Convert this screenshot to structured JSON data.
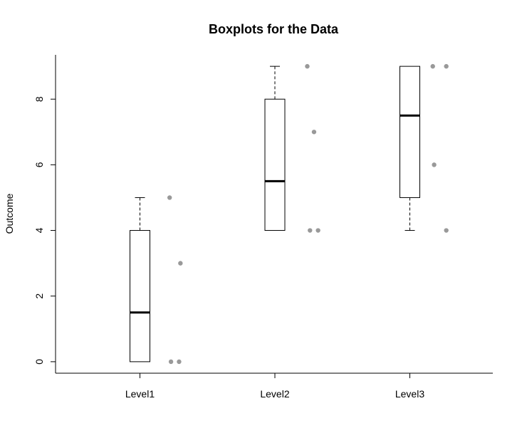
{
  "chart_data": {
    "type": "boxplot",
    "title": "Boxplots for the Data",
    "xlabel": "",
    "ylabel": "Outcome",
    "ylim": [
      -0.35,
      9.35
    ],
    "yticks": [
      0,
      2,
      4,
      6,
      8
    ],
    "categories": [
      "Level1",
      "Level2",
      "Level3"
    ],
    "boxes": [
      {
        "category": "Level1",
        "whisker_low": 0,
        "q1": 0,
        "median": 1.5,
        "q3": 4,
        "whisker_high": 5
      },
      {
        "category": "Level2",
        "whisker_low": 4,
        "q1": 4,
        "median": 5.5,
        "q3": 8,
        "whisker_high": 9
      },
      {
        "category": "Level3",
        "whisker_low": 4,
        "q1": 5,
        "median": 7.5,
        "q3": 9,
        "whisker_high": 9
      }
    ],
    "points": [
      {
        "category": "Level1",
        "values": [
          5,
          3,
          0,
          0
        ],
        "jitter": [
          0.22,
          0.3,
          0.23,
          0.29
        ]
      },
      {
        "category": "Level2",
        "values": [
          9,
          7,
          4,
          4
        ],
        "jitter": [
          0.24,
          0.29,
          0.26,
          0.32
        ]
      },
      {
        "category": "Level3",
        "values": [
          9,
          9,
          6,
          4
        ],
        "jitter": [
          0.17,
          0.27,
          0.18,
          0.27
        ]
      }
    ],
    "point_color": "#999999",
    "grid": false
  }
}
